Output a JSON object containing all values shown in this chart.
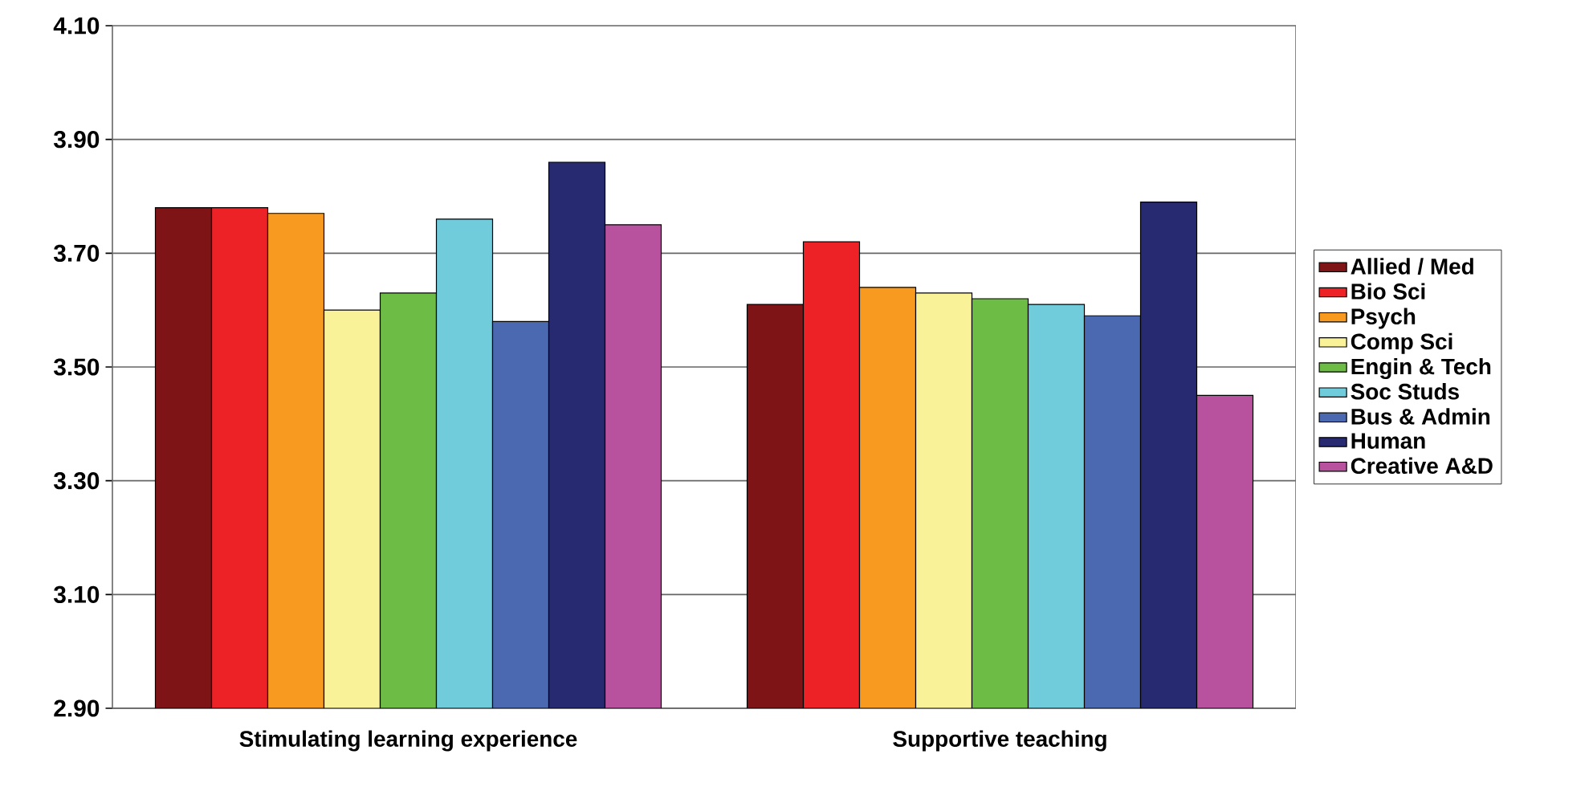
{
  "chart_data": {
    "type": "bar",
    "categories": [
      "Stimulating learning experience",
      "Supportive teaching"
    ],
    "series": [
      {
        "name": "Allied / Med",
        "color": "#7f1416",
        "values": [
          3.78,
          3.61
        ]
      },
      {
        "name": "Bio Sci",
        "color": "#ec2227",
        "values": [
          3.78,
          3.72
        ]
      },
      {
        "name": "Psych",
        "color": "#f89a1f",
        "values": [
          3.77,
          3.64
        ]
      },
      {
        "name": "Comp Sci",
        "color": "#faf299",
        "values": [
          3.6,
          3.63
        ]
      },
      {
        "name": "Engin & Tech",
        "color": "#6cbc45",
        "values": [
          3.63,
          3.62
        ]
      },
      {
        "name": "Soc Studs",
        "color": "#70cbdb",
        "values": [
          3.76,
          3.61
        ]
      },
      {
        "name": "Bus & Admin",
        "color": "#4b69b1",
        "values": [
          3.58,
          3.59
        ]
      },
      {
        "name": "Human",
        "color": "#272a70",
        "values": [
          3.86,
          3.79
        ]
      },
      {
        "name": "Creative A&D",
        "color": "#b8529e",
        "values": [
          3.75,
          3.45
        ]
      }
    ],
    "ylim": [
      2.9,
      4.1
    ],
    "yticks": [
      {
        "value": 2.9,
        "label": "2.90"
      },
      {
        "value": 3.1,
        "label": "3.10"
      },
      {
        "value": 3.3,
        "label": "3.30"
      },
      {
        "value": 3.5,
        "label": "3.50"
      },
      {
        "value": 3.7,
        "label": "3.70"
      },
      {
        "value": 3.9,
        "label": "3.90"
      },
      {
        "value": 4.1,
        "label": "4.10"
      }
    ],
    "grid": "y",
    "legend": "right"
  }
}
